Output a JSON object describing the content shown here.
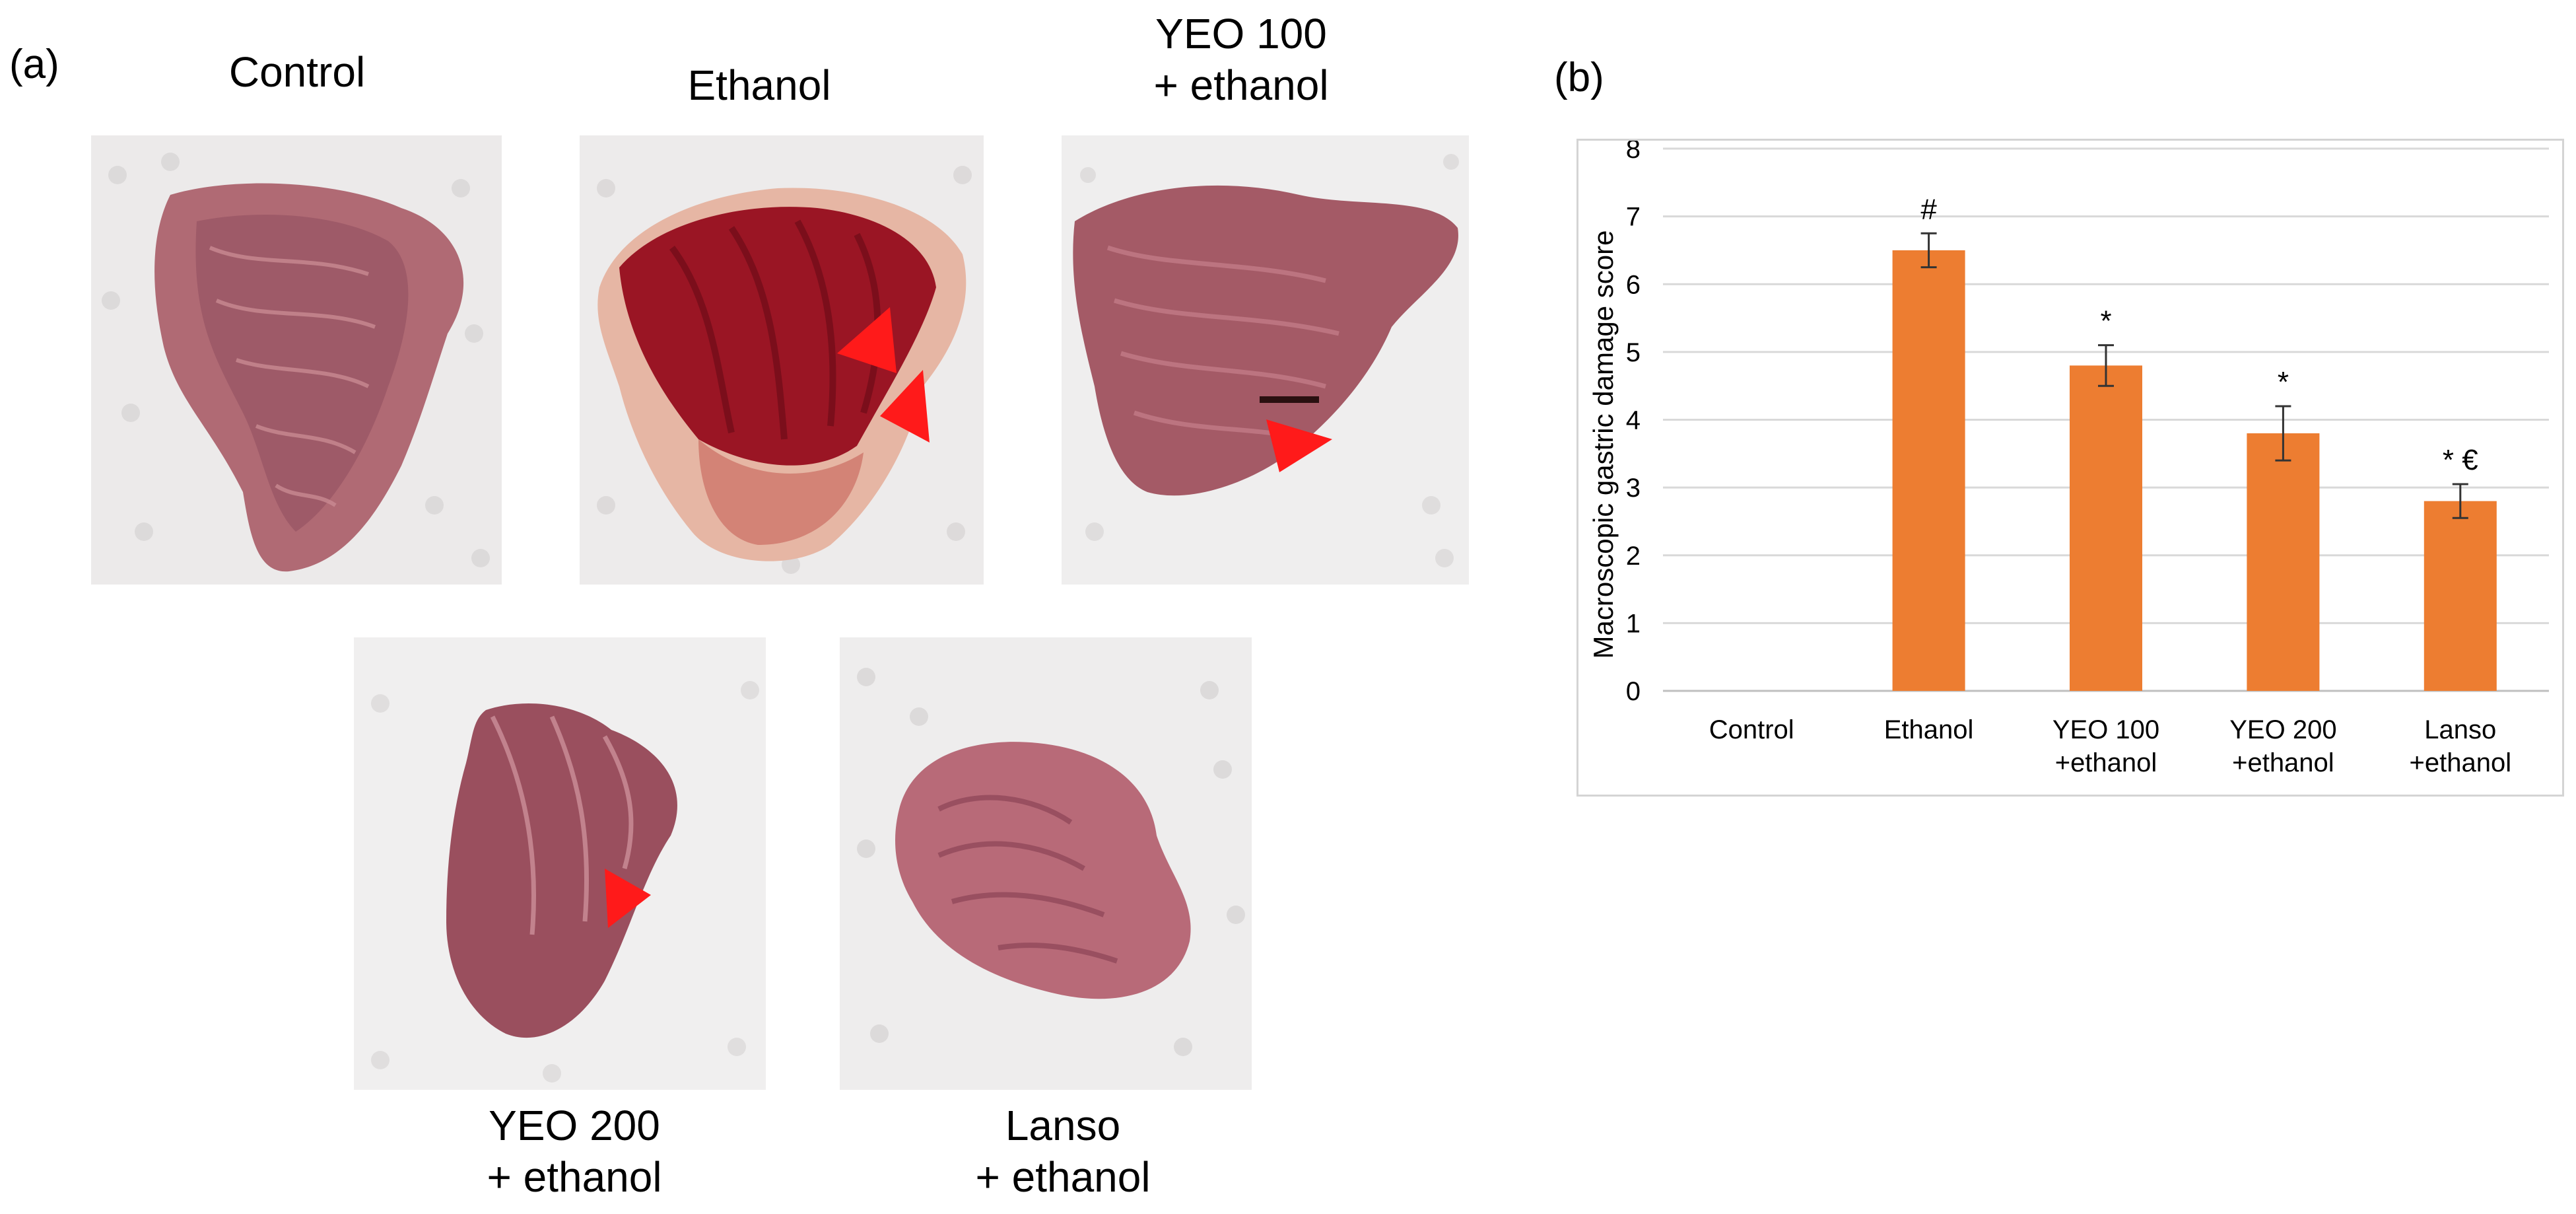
{
  "panel_a": {
    "label": "(a)",
    "photos": [
      {
        "id": "control",
        "caption": "Control",
        "lesion_arrows": 0
      },
      {
        "id": "ethanol",
        "caption": "Ethanol",
        "lesion_arrows": 2
      },
      {
        "id": "yeo100",
        "caption": "YEO 100\n+ ethanol",
        "lesion_arrows": 1
      },
      {
        "id": "yeo200",
        "caption": "YEO 200\n+ ethanol",
        "lesion_arrows": 1
      },
      {
        "id": "lanso",
        "caption": "Lanso\n+ ethanol",
        "lesion_arrows": 0
      }
    ]
  },
  "panel_b": {
    "label": "(b)"
  },
  "colors": {
    "bar": "#ED7D31",
    "arrow": "#FF1A1A",
    "grid": "#D9D9D9"
  },
  "chart_data": {
    "type": "bar",
    "ylabel": "Macroscopic gastric damage score",
    "ylim": [
      0,
      8
    ],
    "yticks": [
      0,
      1,
      2,
      3,
      4,
      5,
      6,
      7,
      8
    ],
    "grid": true,
    "categories": [
      {
        "line1": "Control",
        "line2": ""
      },
      {
        "line1": "Ethanol",
        "line2": ""
      },
      {
        "line1": "YEO 100",
        "line2": "+ethanol"
      },
      {
        "line1": "YEO  200",
        "line2": "+ethanol"
      },
      {
        "line1": "Lanso",
        "line2": "+ethanol"
      }
    ],
    "values": [
      0,
      6.5,
      4.8,
      3.8,
      2.8
    ],
    "errors": [
      0,
      0.25,
      0.3,
      0.4,
      0.25
    ],
    "annotations": [
      "",
      "#",
      "*",
      "*",
      "* €"
    ]
  }
}
